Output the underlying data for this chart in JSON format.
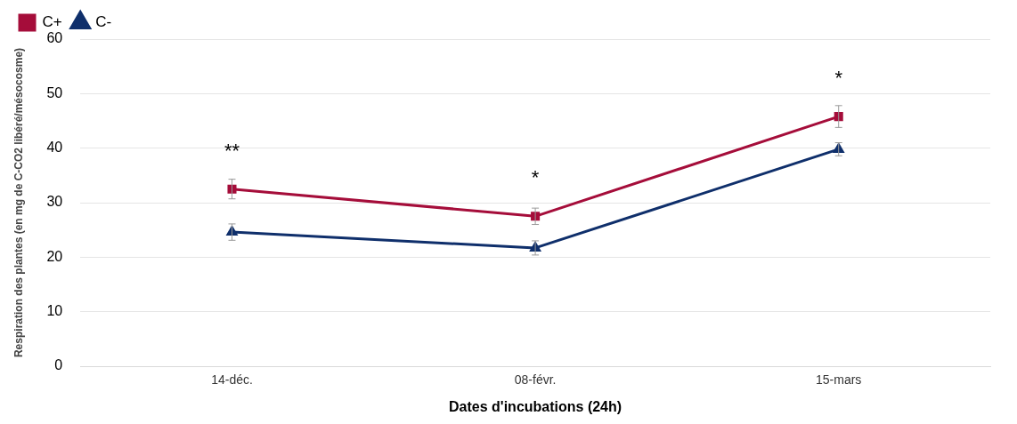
{
  "chart_data": {
    "type": "line",
    "xlabel": "Dates d'incubations (24h)",
    "ylabel": "Respiration des plantes (en mg de C-CO2 libéré/mésocosme)",
    "categories": [
      "14-déc.",
      "08-févr.",
      "15-mars"
    ],
    "series": [
      {
        "name": "C+",
        "color": "#a50d3a",
        "marker": "square",
        "values": [
          32.5,
          27.5,
          45.8
        ],
        "errors": [
          1.8,
          1.5,
          2
        ]
      },
      {
        "name": "C-",
        "color": "#0f2f6b",
        "marker": "triangle",
        "values": [
          24.6,
          21.7,
          39.8
        ],
        "errors": [
          1.5,
          1.3,
          1.2
        ]
      }
    ],
    "ylim": [
      0,
      60
    ],
    "yticks": [
      0,
      10,
      20,
      30,
      40,
      50,
      60
    ],
    "grid": "y",
    "legend": "top left",
    "line_style": "solid",
    "annotations": [
      "**",
      "*",
      "*"
    ]
  }
}
